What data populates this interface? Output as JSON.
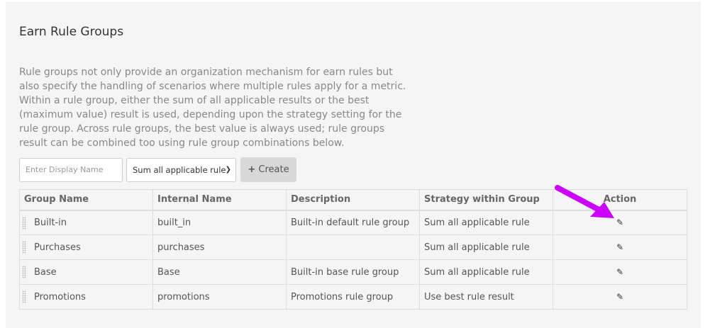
{
  "page": {
    "title": "Earn Rule Groups",
    "description": "Rule groups not only provide an organization mechanism for earn rules but also specify the handling of scenarios where multiple rules apply for a metric. Within a rule group, either the sum of all applicable results or the best (maximum value) result is used, depending upon the strategy setting for the rule group. Across rule groups, the best value is always used; rule groups result can be combined too using rule group combinations below."
  },
  "form": {
    "name_placeholder": "Enter Display Name",
    "strategy_value": "Sum all applicable rule",
    "create_label": "Create",
    "create_icon": "plus-icon"
  },
  "table": {
    "headers": [
      "Group Name",
      "Internal Name",
      "Description",
      "Strategy within Group",
      "Action"
    ],
    "rows": [
      {
        "group": "Built-in",
        "internal": "built_in",
        "description": "Built-in default rule group",
        "strategy": "Sum all applicable rule"
      },
      {
        "group": "Purchases",
        "internal": "purchases",
        "description": "",
        "strategy": "Sum all applicable rule"
      },
      {
        "group": "Base",
        "internal": "Base",
        "description": "Built-in base rule group",
        "strategy": "Sum all applicable rule"
      },
      {
        "group": "Promotions",
        "internal": "promotions",
        "description": "Promotions rule group",
        "strategy": "Use best rule result"
      }
    ]
  },
  "annotation": {
    "color": "#cc00ff"
  }
}
